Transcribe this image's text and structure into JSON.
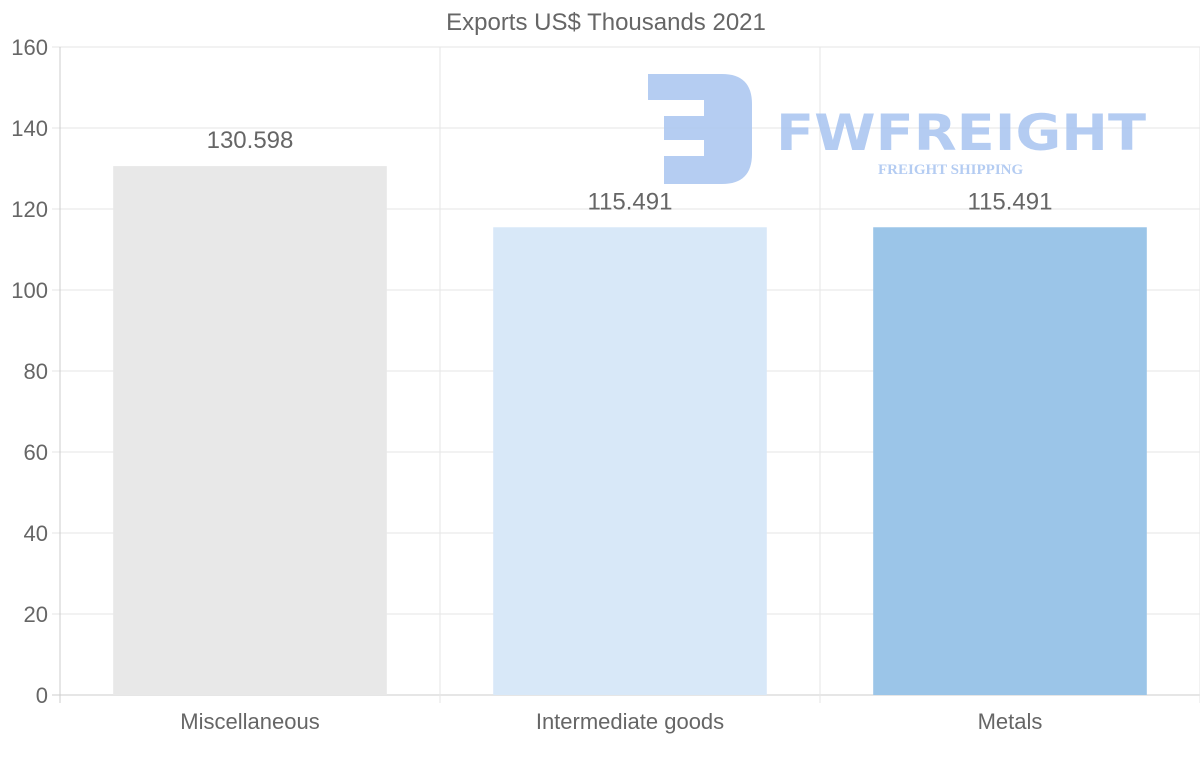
{
  "chart_data": {
    "type": "bar",
    "title": "Exports US$ Thousands 2021",
    "categories": [
      "Miscellaneous",
      "Intermediate goods",
      "Metals"
    ],
    "values": [
      130.598,
      115.491,
      115.491
    ],
    "value_labels": [
      "130.598",
      "115.491",
      "115.491"
    ],
    "colors": [
      "#e8e8e8",
      "#d8e8f8",
      "#9bc5e8"
    ],
    "xlabel": "",
    "ylabel": "",
    "ylim": [
      0,
      160
    ],
    "yticks": [
      0,
      20,
      40,
      60,
      80,
      100,
      120,
      140,
      160
    ],
    "grid": true,
    "legend": "none"
  },
  "watermark": {
    "brand": "FWFREIGHT",
    "tagline": "FREIGHT SHIPPING",
    "color": "#a8c4f0"
  }
}
